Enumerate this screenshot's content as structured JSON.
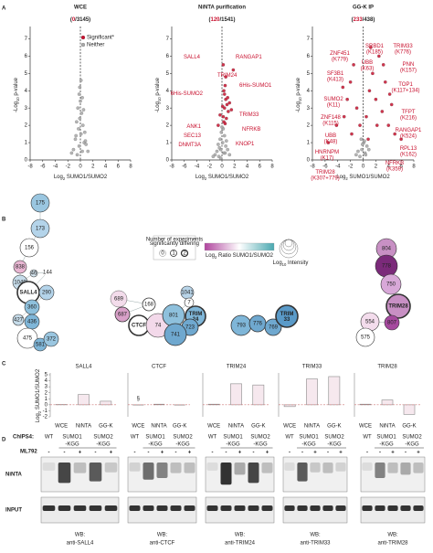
{
  "panel_labels": [
    "A",
    "B",
    "C",
    "D"
  ],
  "chart_data": [
    {
      "type": "scatter",
      "title": "WCE",
      "subtitle": [
        "(",
        "0",
        "/3145)"
      ],
      "xlabel": [
        "Log",
        "2",
        " SUMO1/SUMO2"
      ],
      "ylabel": [
        "-Log",
        "10",
        " p-value"
      ],
      "xlim": [
        -8,
        8
      ],
      "ylim": [
        0,
        7.5
      ],
      "xticks": [
        -8,
        -6,
        -4,
        -2,
        0,
        2,
        4,
        6,
        8
      ],
      "yticks": [
        0,
        1,
        2,
        3,
        4,
        5,
        6,
        7
      ],
      "zero_line": true,
      "legend": "upper right",
      "series": [
        {
          "name": "Significant*",
          "color": "#c8102e",
          "x": [],
          "y": []
        },
        {
          "name": "Neither",
          "color": "#a8a8a8",
          "x": [
            -0.5,
            0.3,
            -0.2,
            0.6,
            -0.8,
            0.1,
            -0.3,
            0.4,
            -1.1,
            0.9,
            -0.1,
            0.2,
            -0.6,
            0.7,
            -0.4,
            0.5,
            -1.4,
            1.2,
            0,
            -0.2,
            0.3,
            -0.7,
            0.8,
            -0.1,
            0.1
          ],
          "y": [
            0.3,
            0.5,
            0.8,
            1.0,
            1.2,
            1.5,
            1.8,
            2.0,
            0.6,
            0.9,
            2.4,
            2.7,
            2.2,
            1.6,
            3.0,
            2.9,
            0.4,
            0.5,
            3.4,
            3.8,
            3.6,
            1.4,
            1.1,
            4.2,
            4.6
          ]
        }
      ],
      "annotations": []
    },
    {
      "type": "scatter",
      "title": "NiNTA purification",
      "subtitle": [
        "(",
        "120",
        "/1541)"
      ],
      "xlabel": [
        "Log",
        "2",
        " SUMO1/SUMO2"
      ],
      "ylabel": [
        "-Log",
        "10",
        " p-value"
      ],
      "xlim": [
        -8,
        8
      ],
      "ylim": [
        0,
        7.5
      ],
      "xticks": [
        -8,
        -6,
        -4,
        -2,
        0,
        2,
        4,
        6,
        8
      ],
      "yticks": [
        0,
        1,
        2,
        3,
        4,
        5,
        6,
        7
      ],
      "zero_line": true,
      "series": [
        {
          "color": "#c8102e",
          "x": [
            0.2,
            0.4,
            0.6,
            0.3,
            0.5,
            0.8,
            1.0,
            0.7,
            1.8,
            0.2,
            0.4,
            0.9,
            0.3,
            0.6,
            -0.3,
            -0.6,
            1.2,
            1.5,
            0.5,
            0.1
          ],
          "y": [
            2.5,
            3.0,
            3.5,
            4.0,
            4.3,
            3.2,
            2.8,
            2.4,
            5.2,
            5.5,
            3.8,
            3.6,
            2.2,
            4.8,
            2.6,
            2.0,
            3.3,
            2.9,
            2.1,
            3.1
          ]
        },
        {
          "color": "#a8a8a8",
          "x": [
            -0.5,
            0.3,
            -0.2,
            0.6,
            -0.8,
            0.1,
            -0.3,
            0.4,
            -1.1,
            0.9,
            -0.1,
            0.2,
            -0.6,
            0.7,
            -0.4,
            0.5,
            -1.4,
            1.2,
            0,
            -0.2
          ],
          "y": [
            0.2,
            0.4,
            0.6,
            0.8,
            0.5,
            1.0,
            1.2,
            1.4,
            0.3,
            0.6,
            1.6,
            1.8,
            0.9,
            1.1,
            0.7,
            0.4,
            0.2,
            0.3,
            1.9,
            0.1
          ]
        }
      ],
      "annotations": [
        [
          "SALL4"
        ],
        [
          "RANGAP1"
        ],
        [
          "TRIM24"
        ],
        [
          "6His-SUMO1"
        ],
        [
          "6His-SUMO2"
        ],
        [
          "TRIM33"
        ],
        [
          "NFRKB"
        ],
        [
          "KNOP1"
        ],
        [
          "ANK1"
        ],
        [
          "SEC13"
        ],
        [
          "DNMT3A"
        ]
      ]
    },
    {
      "type": "scatter",
      "title": "GG-K IP",
      "subtitle": [
        "(",
        "233",
        "/438)"
      ],
      "xlabel": [
        "Log",
        "2",
        " SUMO1/SUMO2"
      ],
      "ylabel": [
        "-Log",
        "10",
        " p-value"
      ],
      "xlim": [
        -8,
        8
      ],
      "ylim": [
        0,
        7.5
      ],
      "xticks": [
        -8,
        -6,
        -4,
        -2,
        0,
        2,
        4,
        6,
        8
      ],
      "yticks": [
        0,
        1,
        2,
        3,
        4,
        5,
        6,
        7
      ],
      "zero_line": true,
      "series": [
        {
          "color": "#c8102e",
          "x": [
            -5.5,
            -4.2,
            -3,
            -2.5,
            -2,
            -1.5,
            -1,
            -0.5,
            0.5,
            1,
            1.5,
            2,
            2.5,
            3,
            3.5,
            4,
            4.5,
            5,
            6,
            1.2,
            -1.8,
            2.2,
            3.2,
            0.8,
            -3.2,
            4.2
          ],
          "y": [
            1,
            2,
            2.5,
            3.5,
            4.5,
            5.5,
            3,
            2,
            2.5,
            4,
            5,
            3.5,
            6,
            2.8,
            4.5,
            2,
            3.2,
            1.5,
            1.2,
            6.5,
            1.5,
            2,
            5.5,
            1.2,
            4.2,
            3.8
          ]
        },
        {
          "color": "#a8a8a8",
          "x": [
            -0.5,
            0.3,
            -0.2,
            0.6,
            -0.8,
            0.1,
            -0.3,
            0.4,
            -1.1,
            0.9,
            -0.1,
            0.2
          ],
          "y": [
            0.2,
            0.4,
            0.6,
            0.8,
            0.5,
            1.0,
            1.2,
            0.3,
            0.3,
            0.6,
            0.9,
            1.1
          ]
        }
      ],
      "annotations": [
        [
          "ZNF451",
          "(K779)"
        ],
        [
          "SF3B1",
          "(K413)"
        ],
        [
          "SUMO2",
          "(K11)"
        ],
        [
          "ZNF148",
          "(K115)"
        ],
        [
          "UBB",
          "(K48)"
        ],
        [
          "HNRNPM",
          "(K17)"
        ],
        [
          "TRIM28",
          "(K307+779)"
        ],
        [
          "SRBD1",
          "(K185)"
        ],
        [
          "UBB",
          "(K63)"
        ],
        [
          "TRIM33",
          "(K776)"
        ],
        [
          "PNN",
          "(K157)"
        ],
        [
          "TOP1",
          "(K117+134)"
        ],
        [
          "TFPT",
          "(K216)"
        ],
        [
          "RANGAP1",
          "(K524)"
        ],
        [
          "RPL13",
          "(K162)"
        ],
        [
          "NFRKB",
          "(K359)"
        ]
      ]
    },
    {
      "type": "bar",
      "title": "SALL4",
      "ylabel": [
        "Log",
        "2",
        " SUMO1/SUMO2"
      ],
      "categories": [
        "WCE",
        "NiNTA",
        "GG-K"
      ],
      "values": [
        0.05,
        1.7,
        0.6
      ],
      "ylim": [
        -2,
        5
      ],
      "yticks": [
        -2,
        -1,
        0,
        1,
        2,
        3,
        4,
        5
      ],
      "color": "#f6e8ee",
      "zero_line": true
    },
    {
      "type": "bar",
      "title": "CTCF",
      "categories": [
        "WCE",
        "NiNTA",
        "GG-K"
      ],
      "values": [
        0,
        0.1,
        -0.05
      ],
      "annotation": "§",
      "ylim": [
        -2,
        5
      ],
      "color": "#f6e8ee",
      "zero_line": true
    },
    {
      "type": "bar",
      "title": "TRIM24",
      "categories": [
        "WCE",
        "NiNTA",
        "GG-K"
      ],
      "values": [
        0.1,
        3.5,
        3.3
      ],
      "ylim": [
        -2,
        5
      ],
      "color": "#f6e8ee",
      "zero_line": true
    },
    {
      "type": "bar",
      "title": "TRIM33",
      "categories": [
        "WCE",
        "NiNTA",
        "GG-K"
      ],
      "values": [
        -0.3,
        4.3,
        4.7
      ],
      "ylim": [
        -2,
        5
      ],
      "color": "#f6e8ee",
      "zero_line": true
    },
    {
      "type": "bar",
      "title": "TRIM28",
      "categories": [
        "WCE",
        "NiNTA",
        "GG-K"
      ],
      "values": [
        0.1,
        0.8,
        -1.6
      ],
      "ylim": [
        -2,
        5
      ],
      "color": "#f6e8ee",
      "zero_line": true
    }
  ],
  "network": {
    "clusters": [
      {
        "nodes": [
          {
            "label": "175",
            "color": "#9ac6e0"
          },
          {
            "label": "173",
            "color": "#b4d4ea"
          },
          {
            "label": "156",
            "color": "#ffffff"
          },
          {
            "label": "838",
            "color": "#e8b6d2"
          },
          {
            "label": "1049",
            "color": "#c6dcea"
          },
          {
            "label": "46",
            "color": "#d6e6f0"
          },
          {
            "label": "144",
            "color": "#ffffff"
          },
          {
            "label": "SALL4",
            "color": "#ffffff"
          },
          {
            "label": "290",
            "color": "#b4d4ea"
          },
          {
            "label": "360",
            "color": "#8ec0dc"
          },
          {
            "label": "427",
            "color": "#c6dcea"
          },
          {
            "label": "436",
            "color": "#7fb6d8"
          },
          {
            "label": "475",
            "color": "#ffffff"
          },
          {
            "label": "581",
            "color": "#7fb6d8"
          },
          {
            "label": "372",
            "color": "#9ac6e0"
          }
        ]
      },
      {
        "nodes": [
          {
            "label": "689",
            "color": "#f3dceb"
          },
          {
            "label": "168",
            "color": "#ffffff"
          },
          {
            "label": "687",
            "color": "#d8a0c8"
          },
          {
            "label": "CTCF",
            "color": "#ffffff"
          },
          {
            "label": "74",
            "color": "#f3d9ea"
          }
        ]
      },
      {
        "nodes": [
          {
            "label": "1041",
            "color": "#b8d4e8"
          },
          {
            "label": "7",
            "color": "#ffffff"
          },
          {
            "label": "801",
            "color": "#8ec0dc"
          },
          {
            "label": [
              "TRIM",
              "24"
            ],
            "color": "#7fb6d8"
          },
          {
            "label": "723",
            "color": "#6fa8cf"
          },
          {
            "label": "741",
            "color": "#6fa8cf"
          }
        ]
      },
      {
        "nodes": [
          {
            "label": "793",
            "color": "#7fb6d8"
          },
          {
            "label": "776",
            "color": "#6fa8cf"
          },
          {
            "label": "769",
            "color": "#6fa8cf"
          },
          {
            "label": [
              "TRIM",
              "33"
            ],
            "color": "#5a9ac8"
          }
        ]
      },
      {
        "nodes": [
          {
            "label": "804",
            "color": "#c890c4"
          },
          {
            "label": "778",
            "color": "#7b2a7a"
          },
          {
            "label": "750",
            "color": "#d8a8d8"
          },
          {
            "label": "TRIM28",
            "color": "#c890c4"
          },
          {
            "label": "807",
            "color": "#a5499e"
          },
          {
            "label": "554",
            "color": "#f3dcec"
          },
          {
            "label": "575",
            "color": "#ffffff"
          }
        ]
      }
    ],
    "legend": {
      "experiments": [
        "Number of experiments",
        "significantly differing"
      ],
      "counts": [
        "0",
        "1",
        "2"
      ],
      "ratio": [
        "Log",
        "2",
        " Ratio SUMO1/SUMO2"
      ],
      "intensity": [
        "Log",
        "10",
        " Intensity"
      ]
    }
  },
  "blots": {
    "row_labels": {
      "chip": "ChIPS4:",
      "ml792": "ML792",
      "ninta": "NiNTA",
      "input": "INPUT"
    },
    "groups": [
      {
        "lanes": [
          "WT",
          "SUMO1",
          "SUMO2"
        ],
        "kgg": [
          "-KGG",
          "-KGG"
        ],
        "signs": [
          "-",
          "-",
          "+",
          "-",
          "+"
        ],
        "wb": [
          "WB:",
          "anti-SALL4"
        ]
      },
      {
        "lanes": [
          "WT",
          "SUMO1",
          "SUMO2"
        ],
        "kgg": [
          "-KGG",
          "-KGG"
        ],
        "signs": [
          "-",
          "-",
          "+",
          "-",
          "+"
        ],
        "wb": [
          "WB:",
          "anti-CTCF"
        ]
      },
      {
        "lanes": [
          "WT",
          "SUMO1",
          "SUMO2"
        ],
        "kgg": [
          "-KGG",
          "-KGG"
        ],
        "signs": [
          "-",
          "-",
          "+",
          "-",
          "+"
        ],
        "wb": [
          "WB:",
          "anti-TRIM24"
        ]
      },
      {
        "lanes": [
          "WT",
          "SUMO1",
          "SUMO2"
        ],
        "kgg": [
          "-KGG",
          "-KGG"
        ],
        "signs": [
          "-",
          "-",
          "+",
          "-",
          "+"
        ],
        "wb": [
          "WB:",
          "anti-TRIM33"
        ]
      },
      {
        "lanes": [
          "WT",
          "SUMO1",
          "SUMO2"
        ],
        "kgg": [
          "-KGG",
          "-KGG"
        ],
        "signs": [
          "-",
          "-",
          "+",
          "-",
          "+"
        ],
        "wb": [
          "WB:",
          "anti-TRIM28"
        ]
      }
    ]
  }
}
